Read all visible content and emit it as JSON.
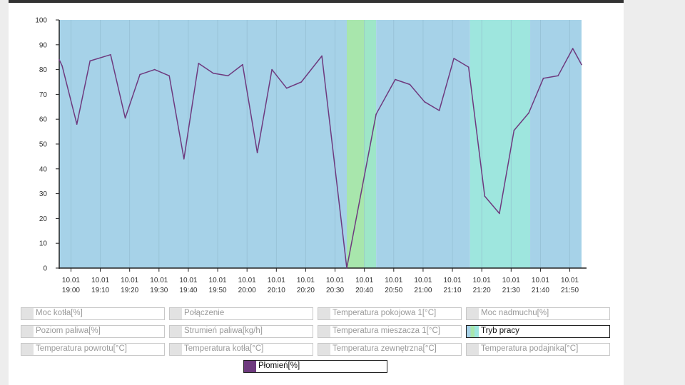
{
  "chart_data": {
    "type": "line",
    "ylim": [
      0,
      100
    ],
    "y_ticks": [
      "0",
      "10",
      "20",
      "30",
      "40",
      "50",
      "60",
      "70",
      "80",
      "90",
      "100"
    ],
    "x_tick_labels": [
      [
        "10.01",
        "19:00"
      ],
      [
        "10.01",
        "19:10"
      ],
      [
        "10.01",
        "19:20"
      ],
      [
        "10.01",
        "19:30"
      ],
      [
        "10.01",
        "19:40"
      ],
      [
        "10.01",
        "19:50"
      ],
      [
        "10.01",
        "20:00"
      ],
      [
        "10.01",
        "20:10"
      ],
      [
        "10.01",
        "20:20"
      ],
      [
        "10.01",
        "20:30"
      ],
      [
        "10.01",
        "20:40"
      ],
      [
        "10.01",
        "20:50"
      ],
      [
        "10.01",
        "21:00"
      ],
      [
        "10.01",
        "21:10"
      ],
      [
        "10.01",
        "21:20"
      ],
      [
        "10.01",
        "21:30"
      ],
      [
        "10.01",
        "21:40"
      ],
      [
        "10.01",
        "21:50"
      ]
    ],
    "x_start_minute": 0,
    "x_end_minute": 178,
    "bands": [
      {
        "from": 0,
        "to": 98,
        "color": "#a6d2e8"
      },
      {
        "from": 98,
        "to": 104,
        "color": "#a8e6ac"
      },
      {
        "from": 104,
        "to": 108,
        "color": "#9ee6c8"
      },
      {
        "from": 108,
        "to": 140,
        "color": "#a6d2e8"
      },
      {
        "from": 140,
        "to": 160.5,
        "color": "#9ee6de"
      },
      {
        "from": 160.5,
        "to": 178,
        "color": "#a6d2e8"
      }
    ],
    "series": [
      {
        "name": "Płomień[%]",
        "color": "#6e3a7e",
        "points": [
          [
            0,
            84
          ],
          [
            1,
            81.5
          ],
          [
            6,
            58
          ],
          [
            10.5,
            83.5
          ],
          [
            17.5,
            86
          ],
          [
            22.5,
            60.5
          ],
          [
            27.5,
            78
          ],
          [
            32.5,
            80
          ],
          [
            37.5,
            77.5
          ],
          [
            42.5,
            44
          ],
          [
            47.5,
            82.5
          ],
          [
            52.5,
            78.5
          ],
          [
            57.5,
            77.5
          ],
          [
            62.5,
            82
          ],
          [
            67.5,
            46.5
          ],
          [
            72.5,
            80
          ],
          [
            77.5,
            72.5
          ],
          [
            82.5,
            75
          ],
          [
            89.5,
            85.5
          ],
          [
            98,
            0
          ],
          [
            108,
            62
          ],
          [
            114.5,
            76
          ],
          [
            119.5,
            74
          ],
          [
            124.5,
            67
          ],
          [
            129.5,
            63.5
          ],
          [
            134.5,
            84.5
          ],
          [
            139.5,
            81
          ],
          [
            145,
            29
          ],
          [
            150,
            22
          ],
          [
            155,
            55.5
          ],
          [
            160,
            62.5
          ],
          [
            165,
            76.5
          ],
          [
            170,
            77.5
          ],
          [
            175,
            88.5
          ],
          [
            178,
            82
          ]
        ]
      }
    ]
  },
  "legend": [
    {
      "label": "Moc kotła[%]",
      "active": false
    },
    {
      "label": "Połączenie",
      "active": false
    },
    {
      "label": "Temperatura pokojowa 1[°C]",
      "active": false
    },
    {
      "label": "Moc nadmuchu[%]",
      "active": false
    },
    {
      "label": "Poziom paliwa[%]",
      "active": false
    },
    {
      "label": "Strumień paliwa[kg/h]",
      "active": false
    },
    {
      "label": "Temperatura mieszacza 1[°C]",
      "active": false
    },
    {
      "label": "Tryb pracy",
      "active": true,
      "swatch_colors": [
        "#a6d2e8",
        "#a8e6ac",
        "#9ee6de"
      ]
    },
    {
      "label": "Temperatura powrotu[°C]",
      "active": false
    },
    {
      "label": "Temperatura kotła[°C]",
      "active": false
    },
    {
      "label": "Temperatura zewnętrzna[°C]",
      "active": false
    },
    {
      "label": "Temperatura podajnika[°C]",
      "active": false
    },
    {
      "label": "Płomień[%]",
      "active": true,
      "swatch_color": "#6e3a7e"
    }
  ]
}
